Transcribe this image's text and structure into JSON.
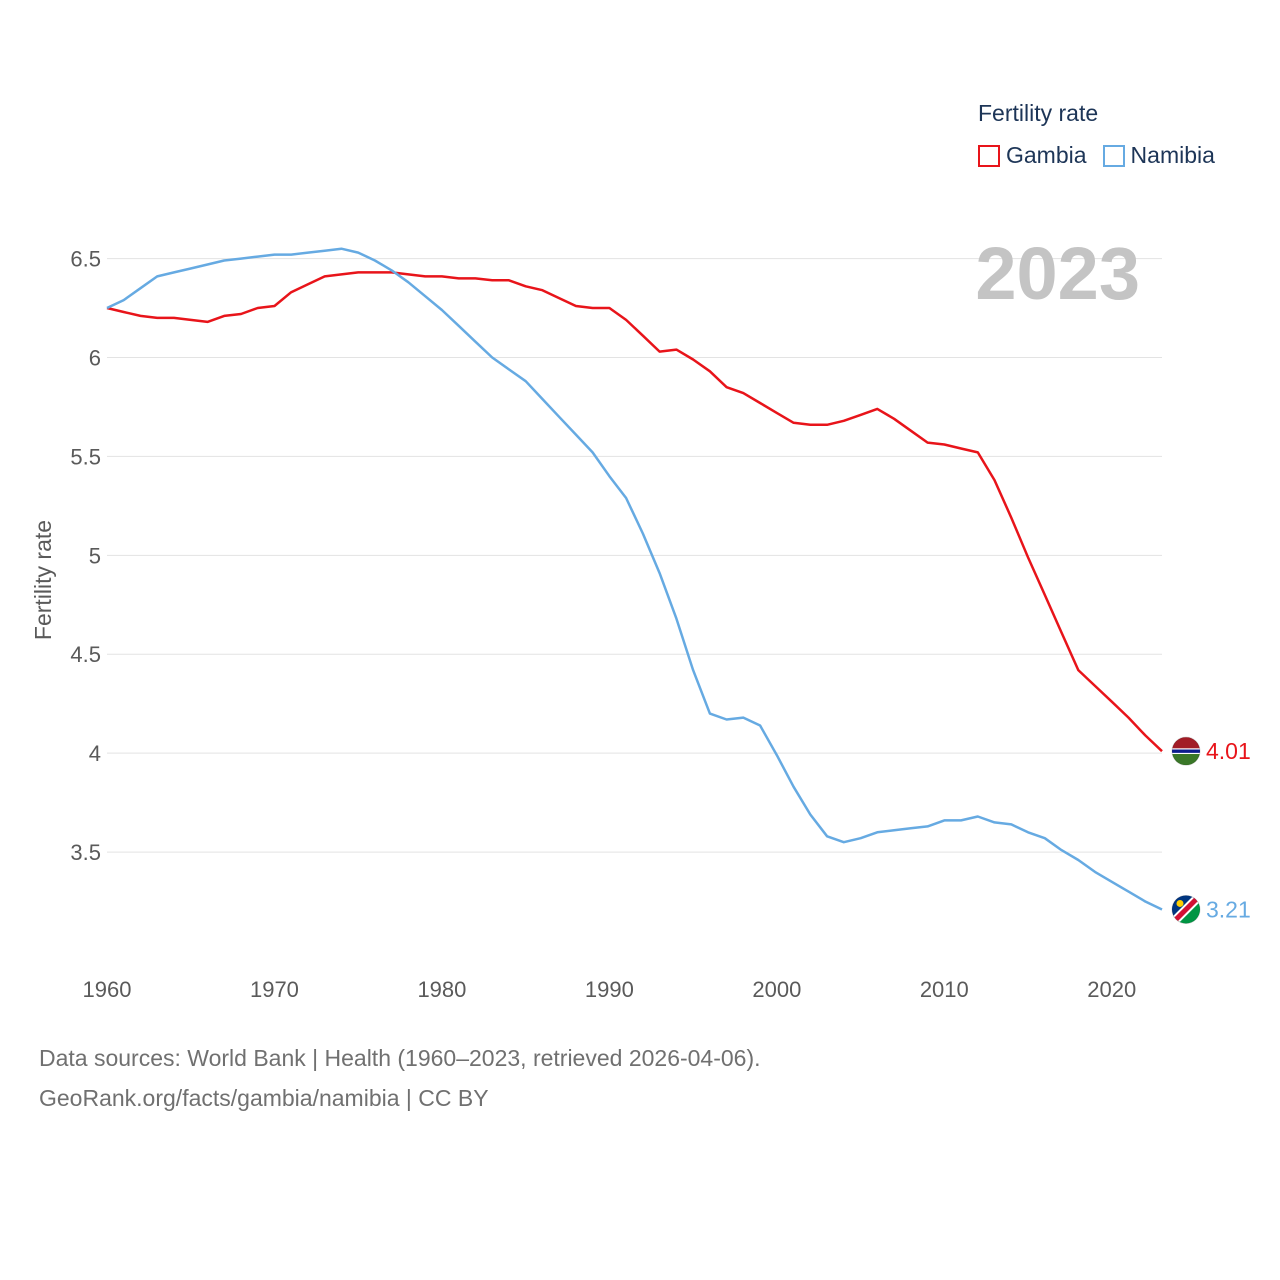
{
  "chart_data": {
    "type": "line",
    "ylabel": "Fertility rate",
    "xlabel": "",
    "legend_title": "Fertility rate",
    "legend_position": "top-right",
    "year_label": "2023",
    "x_ticks": [
      1960,
      1970,
      1980,
      1990,
      2000,
      2010,
      2020
    ],
    "y_ticks": [
      3.5,
      4,
      4.5,
      5,
      5.5,
      6,
      6.5
    ],
    "y_tick_labels": [
      "3.5",
      "4",
      "4.5",
      "5",
      "5.5",
      "6",
      "6.5"
    ],
    "xlim": [
      1960,
      2023
    ],
    "ylim": [
      3.0,
      6.7
    ],
    "grid": true,
    "x": [
      1960,
      1961,
      1962,
      1963,
      1964,
      1965,
      1966,
      1967,
      1968,
      1969,
      1970,
      1971,
      1972,
      1973,
      1974,
      1975,
      1976,
      1977,
      1978,
      1979,
      1980,
      1981,
      1982,
      1983,
      1984,
      1985,
      1986,
      1987,
      1988,
      1989,
      1990,
      1991,
      1992,
      1993,
      1994,
      1995,
      1996,
      1997,
      1998,
      1999,
      2000,
      2001,
      2002,
      2003,
      2004,
      2005,
      2006,
      2007,
      2008,
      2009,
      2010,
      2011,
      2012,
      2013,
      2014,
      2015,
      2016,
      2017,
      2018,
      2019,
      2020,
      2021,
      2022,
      2023
    ],
    "series": [
      {
        "name": "Gambia",
        "color": "#e8141a",
        "end_label": "4.01",
        "values": [
          6.25,
          6.23,
          6.21,
          6.2,
          6.2,
          6.19,
          6.18,
          6.21,
          6.22,
          6.25,
          6.26,
          6.33,
          6.37,
          6.41,
          6.42,
          6.43,
          6.43,
          6.43,
          6.42,
          6.41,
          6.41,
          6.4,
          6.4,
          6.39,
          6.39,
          6.36,
          6.34,
          6.3,
          6.26,
          6.25,
          6.25,
          6.19,
          6.11,
          6.03,
          6.04,
          5.99,
          5.93,
          5.85,
          5.82,
          5.77,
          5.72,
          5.67,
          5.66,
          5.66,
          5.68,
          5.71,
          5.74,
          5.69,
          5.63,
          5.57,
          5.56,
          5.54,
          5.52,
          5.38,
          5.19,
          4.99,
          4.8,
          4.61,
          4.42,
          4.34,
          4.26,
          4.18,
          4.09,
          4.01
        ]
      },
      {
        "name": "Namibia",
        "color": "#66aae2",
        "end_label": "3.21",
        "values": [
          6.25,
          6.29,
          6.35,
          6.41,
          6.43,
          6.45,
          6.47,
          6.49,
          6.5,
          6.51,
          6.52,
          6.52,
          6.53,
          6.54,
          6.55,
          6.53,
          6.49,
          6.44,
          6.38,
          6.31,
          6.24,
          6.16,
          6.08,
          6.0,
          5.94,
          5.88,
          5.79,
          5.7,
          5.61,
          5.52,
          5.4,
          5.29,
          5.11,
          4.91,
          4.68,
          4.42,
          4.2,
          4.17,
          4.18,
          4.14,
          3.99,
          3.83,
          3.69,
          3.58,
          3.55,
          3.57,
          3.6,
          3.61,
          3.62,
          3.63,
          3.66,
          3.66,
          3.68,
          3.65,
          3.64,
          3.6,
          3.57,
          3.51,
          3.46,
          3.4,
          3.35,
          3.3,
          3.25,
          3.21
        ]
      }
    ]
  },
  "footer": {
    "line1": "Data sources: World Bank | Health (1960–2023, retrieved 2026-04-06).",
    "line2": "GeoRank.org/facts/gambia/namibia | CC BY"
  },
  "flags": {
    "gambia": [
      "#a21c26",
      "#ffffff",
      "#0c1c8c",
      "#3a7728"
    ],
    "namibia": [
      "#003580",
      "#d21034",
      "#009543",
      "#ffce00"
    ]
  }
}
